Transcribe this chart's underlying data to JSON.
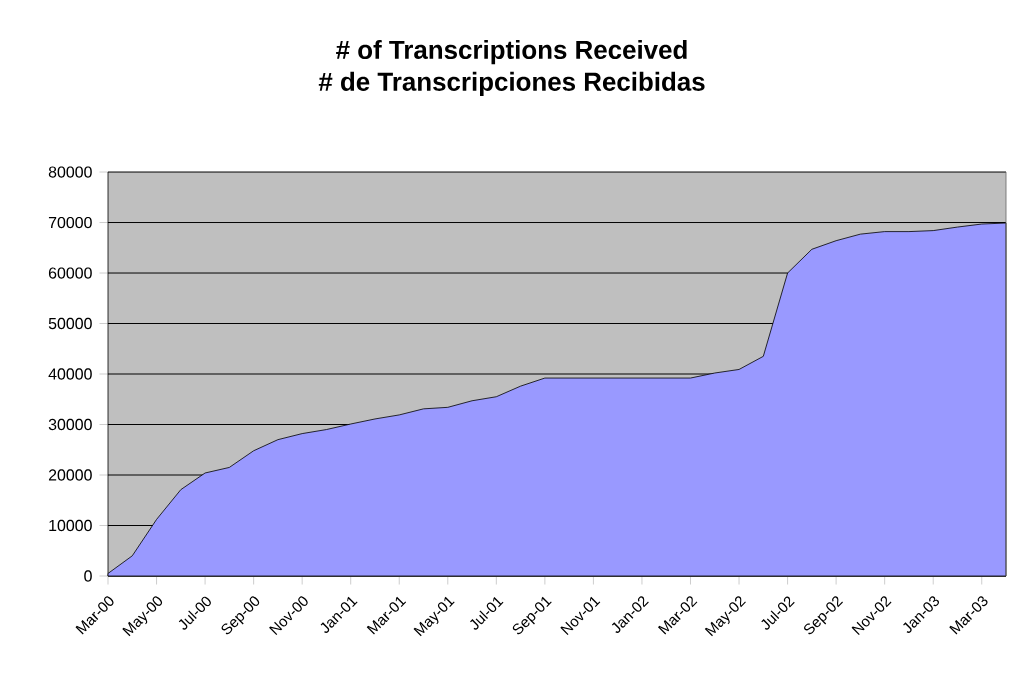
{
  "chart_data": {
    "type": "area",
    "title": "# of Transcriptions Received",
    "subtitle": "# de Transcripciones Recibidas",
    "categories": [
      "Mar-00",
      null,
      "May-00",
      null,
      "Jul-00",
      null,
      "Sep-00",
      null,
      "Nov-00",
      null,
      "Jan-01",
      null,
      "Mar-01",
      null,
      "May-01",
      null,
      "Jul-01",
      null,
      "Sep-01",
      null,
      "Nov-01",
      null,
      "Jan-02",
      null,
      "Mar-02",
      null,
      "May-02",
      null,
      "Jul-02",
      null,
      "Sep-02",
      null,
      "Nov-02",
      null,
      "Jan-03",
      null,
      "Mar-03",
      null
    ],
    "values": [
      500,
      4000,
      11200,
      17100,
      20400,
      21500,
      24800,
      27000,
      28200,
      29000,
      30100,
      31100,
      31900,
      33100,
      33400,
      34700,
      35500,
      37600,
      39200,
      39200,
      39200,
      39200,
      39200,
      39200,
      39200,
      40200,
      40900,
      43500,
      60000,
      64700,
      66400,
      67700,
      68200,
      68200,
      68400,
      69100,
      69700,
      69900
    ],
    "color": "#9999ff",
    "ylim": [
      0,
      80000
    ],
    "yticks": [
      0,
      10000,
      20000,
      30000,
      40000,
      50000,
      60000,
      70000,
      80000
    ],
    "grid": "y"
  }
}
